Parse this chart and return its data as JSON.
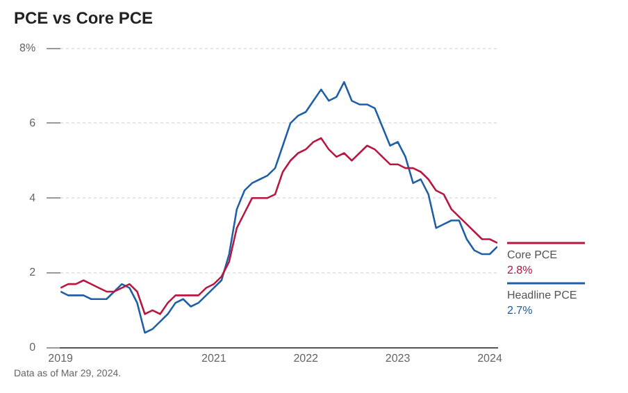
{
  "chart_data": {
    "type": "line",
    "title": "PCE vs Core PCE",
    "x": [
      "2019-05",
      "2019-06",
      "2019-07",
      "2019-08",
      "2019-09",
      "2019-10",
      "2019-11",
      "2019-12",
      "2020-01",
      "2020-02",
      "2020-03",
      "2020-04",
      "2020-05",
      "2020-06",
      "2020-07",
      "2020-08",
      "2020-09",
      "2020-10",
      "2020-11",
      "2020-12",
      "2021-01",
      "2021-02",
      "2021-03",
      "2021-04",
      "2021-05",
      "2021-06",
      "2021-07",
      "2021-08",
      "2021-09",
      "2021-10",
      "2021-11",
      "2021-12",
      "2022-01",
      "2022-02",
      "2022-03",
      "2022-04",
      "2022-05",
      "2022-06",
      "2022-07",
      "2022-08",
      "2022-09",
      "2022-10",
      "2022-11",
      "2022-12",
      "2023-01",
      "2023-02",
      "2023-03",
      "2023-04",
      "2023-05",
      "2023-06",
      "2023-07",
      "2023-08",
      "2023-09",
      "2023-10",
      "2023-11",
      "2023-12",
      "2024-01",
      "2024-02"
    ],
    "series": [
      {
        "name": "Core PCE",
        "color": "#b8173f",
        "values": [
          1.6,
          1.7,
          1.7,
          1.8,
          1.7,
          1.6,
          1.5,
          1.5,
          1.6,
          1.7,
          1.5,
          0.9,
          1.0,
          0.9,
          1.2,
          1.4,
          1.4,
          1.4,
          1.4,
          1.6,
          1.7,
          1.9,
          2.3,
          3.2,
          3.6,
          4.0,
          4.0,
          4.0,
          4.1,
          4.7,
          5.0,
          5.2,
          5.3,
          5.5,
          5.6,
          5.3,
          5.1,
          5.2,
          5.0,
          5.2,
          5.4,
          5.3,
          5.1,
          4.9,
          4.9,
          4.8,
          4.8,
          4.7,
          4.5,
          4.2,
          4.1,
          3.7,
          3.5,
          3.3,
          3.1,
          2.9,
          2.9,
          2.8
        ]
      },
      {
        "name": "Headline PCE",
        "color": "#1f5fa8",
        "values": [
          1.5,
          1.4,
          1.4,
          1.4,
          1.3,
          1.3,
          1.3,
          1.5,
          1.7,
          1.6,
          1.2,
          0.4,
          0.5,
          0.7,
          0.9,
          1.2,
          1.3,
          1.1,
          1.2,
          1.4,
          1.6,
          1.8,
          2.5,
          3.7,
          4.2,
          4.4,
          4.5,
          4.6,
          4.8,
          5.4,
          6.0,
          6.2,
          6.3,
          6.6,
          6.9,
          6.6,
          6.7,
          7.1,
          6.6,
          6.5,
          6.5,
          6.4,
          5.9,
          5.4,
          5.5,
          5.1,
          4.4,
          4.5,
          4.1,
          3.2,
          3.3,
          3.4,
          3.4,
          2.9,
          2.6,
          2.5,
          2.5,
          2.7
        ]
      }
    ],
    "xlim": [
      "2019-05",
      "2024-02"
    ],
    "xticks": [
      {
        "value": "2019-05",
        "label": "2019"
      },
      "2021",
      "2022",
      "2023",
      "2024"
    ],
    "ylim": [
      0,
      8
    ],
    "yticks": [
      0,
      2,
      4,
      6,
      {
        "value": 8,
        "label": "8%"
      }
    ],
    "grid": "y",
    "legend": "right",
    "marker": "none",
    "line_style": "solid",
    "annotations": [
      "Data as of Mar 29, 2024.",
      "2.8%",
      "2.7%"
    ]
  }
}
